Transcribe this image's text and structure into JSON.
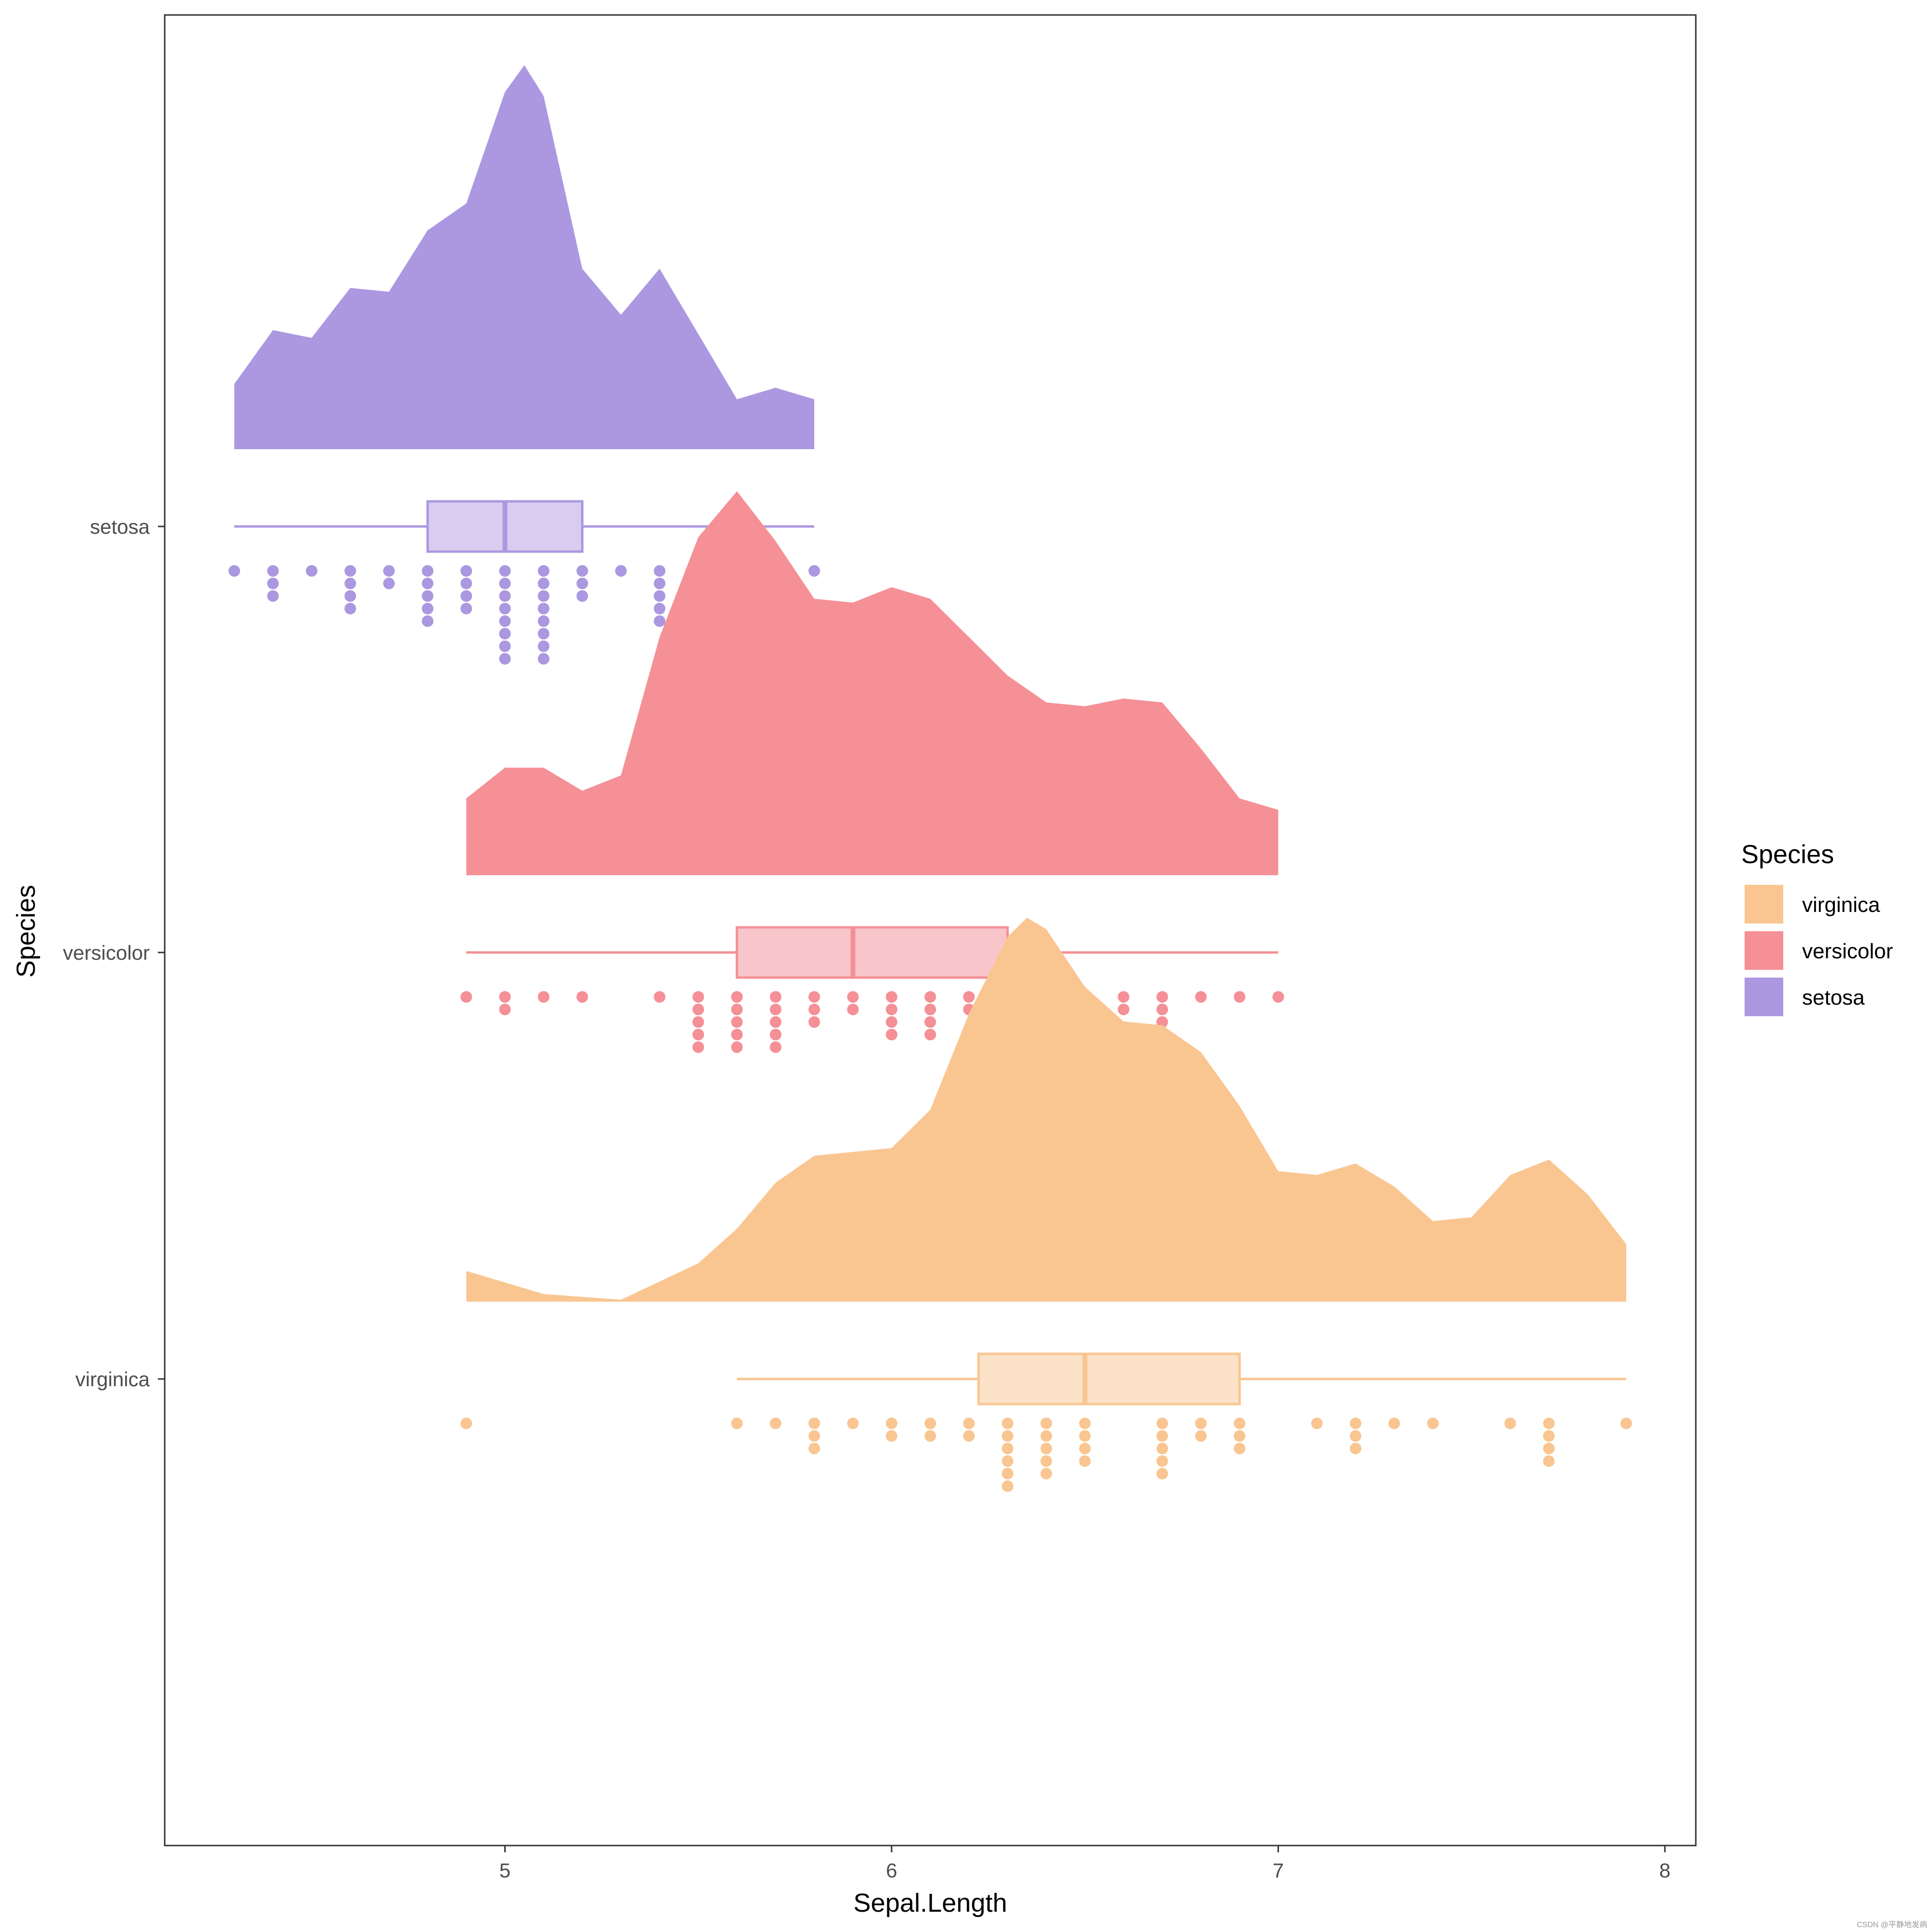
{
  "chart_data": {
    "type": "raincloud",
    "xlabel": "Sepal.Length",
    "ylabel": "Species",
    "xlim": [
      4.12,
      8.08
    ],
    "xticks": [
      5,
      6,
      7,
      8
    ],
    "xtick_labels": [
      "5",
      "6",
      "7",
      "8"
    ],
    "categories": [
      "setosa",
      "versicolor",
      "virginica"
    ],
    "legend": {
      "title": "Species",
      "position": "right",
      "entries": [
        "virginica",
        "versicolor",
        "setosa"
      ]
    },
    "series": [
      {
        "name": "setosa",
        "color": "#AB98E0",
        "box_fill": "#D8CDF0",
        "min": 4.3,
        "q1": 4.8,
        "median": 5.0,
        "q3": 5.2,
        "max": 5.8,
        "dots": [
          [
            4.3,
            1
          ],
          [
            4.4,
            3
          ],
          [
            4.5,
            1
          ],
          [
            4.6,
            4
          ],
          [
            4.7,
            2
          ],
          [
            4.8,
            5
          ],
          [
            4.9,
            4
          ],
          [
            5.0,
            8
          ],
          [
            5.1,
            8
          ],
          [
            5.2,
            3
          ],
          [
            5.3,
            1
          ],
          [
            5.4,
            5
          ],
          [
            5.5,
            2
          ],
          [
            5.7,
            2
          ],
          [
            5.8,
            1
          ]
        ],
        "density": [
          [
            4.3,
            0.17
          ],
          [
            4.4,
            0.31
          ],
          [
            4.5,
            0.29
          ],
          [
            4.6,
            0.42
          ],
          [
            4.7,
            0.41
          ],
          [
            4.8,
            0.57
          ],
          [
            4.9,
            0.64
          ],
          [
            5.0,
            0.93
          ],
          [
            5.05,
            1.0
          ],
          [
            5.1,
            0.92
          ],
          [
            5.2,
            0.47
          ],
          [
            5.3,
            0.35
          ],
          [
            5.4,
            0.47
          ],
          [
            5.5,
            0.3
          ],
          [
            5.6,
            0.13
          ],
          [
            5.7,
            0.16
          ],
          [
            5.8,
            0.13
          ]
        ]
      },
      {
        "name": "versicolor",
        "color": "#F49096",
        "box_fill": "#F8C6CA",
        "min": 4.9,
        "q1": 5.6,
        "median": 5.9,
        "q3": 6.3,
        "max": 7.0,
        "dots": [
          [
            4.9,
            1
          ],
          [
            5.0,
            2
          ],
          [
            5.1,
            1
          ],
          [
            5.2,
            1
          ],
          [
            5.4,
            1
          ],
          [
            5.5,
            5
          ],
          [
            5.6,
            5
          ],
          [
            5.7,
            5
          ],
          [
            5.8,
            3
          ],
          [
            5.9,
            2
          ],
          [
            6.0,
            4
          ],
          [
            6.1,
            4
          ],
          [
            6.2,
            2
          ],
          [
            6.3,
            3
          ],
          [
            6.4,
            2
          ],
          [
            6.5,
            1
          ],
          [
            6.6,
            2
          ],
          [
            6.7,
            3
          ],
          [
            6.8,
            1
          ],
          [
            6.9,
            1
          ],
          [
            7.0,
            1
          ]
        ],
        "density": [
          [
            4.9,
            0.2
          ],
          [
            5.0,
            0.28
          ],
          [
            5.1,
            0.28
          ],
          [
            5.2,
            0.22
          ],
          [
            5.3,
            0.26
          ],
          [
            5.4,
            0.62
          ],
          [
            5.5,
            0.88
          ],
          [
            5.6,
            1.0
          ],
          [
            5.7,
            0.87
          ],
          [
            5.8,
            0.72
          ],
          [
            5.9,
            0.71
          ],
          [
            6.0,
            0.75
          ],
          [
            6.1,
            0.72
          ],
          [
            6.2,
            0.62
          ],
          [
            6.3,
            0.52
          ],
          [
            6.4,
            0.45
          ],
          [
            6.5,
            0.44
          ],
          [
            6.6,
            0.46
          ],
          [
            6.7,
            0.45
          ],
          [
            6.8,
            0.33
          ],
          [
            6.9,
            0.2
          ],
          [
            7.0,
            0.17
          ]
        ]
      },
      {
        "name": "virginica",
        "color": "#F9C691",
        "box_fill": "#FBE2C8",
        "min": 5.6,
        "q1": 6.225,
        "median": 6.5,
        "q3": 6.9,
        "max": 7.9,
        "dots": [
          [
            4.9,
            1
          ],
          [
            5.6,
            1
          ],
          [
            5.7,
            1
          ],
          [
            5.8,
            3
          ],
          [
            5.9,
            1
          ],
          [
            6.0,
            2
          ],
          [
            6.1,
            2
          ],
          [
            6.2,
            2
          ],
          [
            6.3,
            6
          ],
          [
            6.4,
            5
          ],
          [
            6.5,
            4
          ],
          [
            6.7,
            5
          ],
          [
            6.8,
            2
          ],
          [
            6.9,
            3
          ],
          [
            7.1,
            1
          ],
          [
            7.2,
            3
          ],
          [
            7.3,
            1
          ],
          [
            7.4,
            1
          ],
          [
            7.6,
            1
          ],
          [
            7.7,
            4
          ],
          [
            7.9,
            1
          ]
        ],
        "density": [
          [
            4.9,
            0.08
          ],
          [
            5.1,
            0.02
          ],
          [
            5.3,
            0.005
          ],
          [
            5.5,
            0.1
          ],
          [
            5.6,
            0.19
          ],
          [
            5.7,
            0.31
          ],
          [
            5.8,
            0.38
          ],
          [
            6.0,
            0.4
          ],
          [
            6.1,
            0.5
          ],
          [
            6.2,
            0.75
          ],
          [
            6.3,
            0.95
          ],
          [
            6.35,
            1.0
          ],
          [
            6.4,
            0.97
          ],
          [
            6.5,
            0.82
          ],
          [
            6.6,
            0.73
          ],
          [
            6.7,
            0.72
          ],
          [
            6.8,
            0.65
          ],
          [
            6.9,
            0.51
          ],
          [
            7.0,
            0.34
          ],
          [
            7.1,
            0.33
          ],
          [
            7.2,
            0.36
          ],
          [
            7.3,
            0.3
          ],
          [
            7.4,
            0.21
          ],
          [
            7.5,
            0.22
          ],
          [
            7.6,
            0.33
          ],
          [
            7.7,
            0.37
          ],
          [
            7.8,
            0.28
          ],
          [
            7.9,
            0.15
          ]
        ]
      }
    ]
  },
  "watermark": "CSDN @平静地发病"
}
